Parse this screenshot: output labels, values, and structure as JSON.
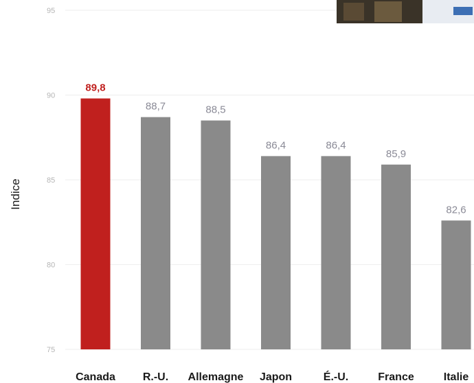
{
  "chart_data": {
    "type": "bar",
    "ylabel": "Indice",
    "xlabel": "",
    "ylim": [
      75,
      95
    ],
    "yticks": [
      75,
      80,
      85,
      90,
      95
    ],
    "grid": true,
    "categories": [
      "Canada",
      "R.-U.",
      "Allemagne",
      "Japon",
      "É.-U.",
      "France",
      "Italie"
    ],
    "values": [
      89.8,
      88.7,
      88.5,
      86.4,
      86.4,
      85.9,
      82.6
    ],
    "value_labels": [
      "89,8",
      "88,7",
      "88,5",
      "86,4",
      "86,4",
      "85,9",
      "82,6"
    ],
    "highlight_index": 0,
    "colors": {
      "highlight": "#c0201e",
      "bar": "#8a8a8a",
      "value_label": "#8a8a96",
      "grid": "#eeeeee"
    }
  }
}
